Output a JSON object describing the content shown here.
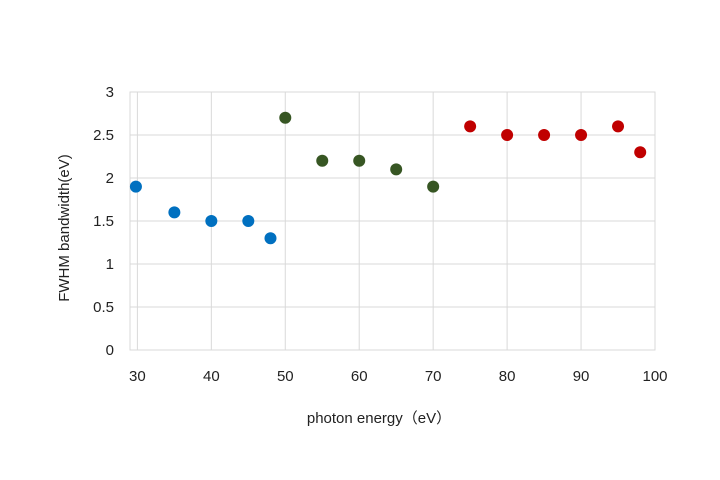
{
  "chart_data": {
    "type": "scatter",
    "title": "",
    "xlabel": "photon energy（eV）",
    "ylabel": "FWHM bandwidth(eV)",
    "xlim": [
      29,
      100
    ],
    "ylim": [
      0,
      3
    ],
    "xticks": [
      "30",
      "40",
      "50",
      "60",
      "70",
      "80",
      "90",
      "100"
    ],
    "xtick_values": [
      30,
      40,
      50,
      60,
      70,
      80,
      90,
      100
    ],
    "yticks": [
      "0",
      "0.5",
      "1",
      "1.5",
      "2",
      "2.5",
      "3"
    ],
    "ytick_values": [
      0,
      0.5,
      1,
      1.5,
      2,
      2.5,
      3
    ],
    "grid": true,
    "legend": "none",
    "series": [
      {
        "color": "#0070c0",
        "x": [
          29.8,
          35,
          40,
          45,
          48
        ],
        "y": [
          1.9,
          1.6,
          1.5,
          1.5,
          1.3
        ]
      },
      {
        "color": "#375623",
        "x": [
          50,
          55,
          60,
          65,
          70
        ],
        "y": [
          2.7,
          2.2,
          2.2,
          2.1,
          1.9
        ]
      },
      {
        "color": "#c00000",
        "x": [
          75,
          80,
          85,
          90,
          95,
          98
        ],
        "y": [
          2.6,
          2.5,
          2.5,
          2.5,
          2.6,
          2.3
        ]
      }
    ]
  }
}
